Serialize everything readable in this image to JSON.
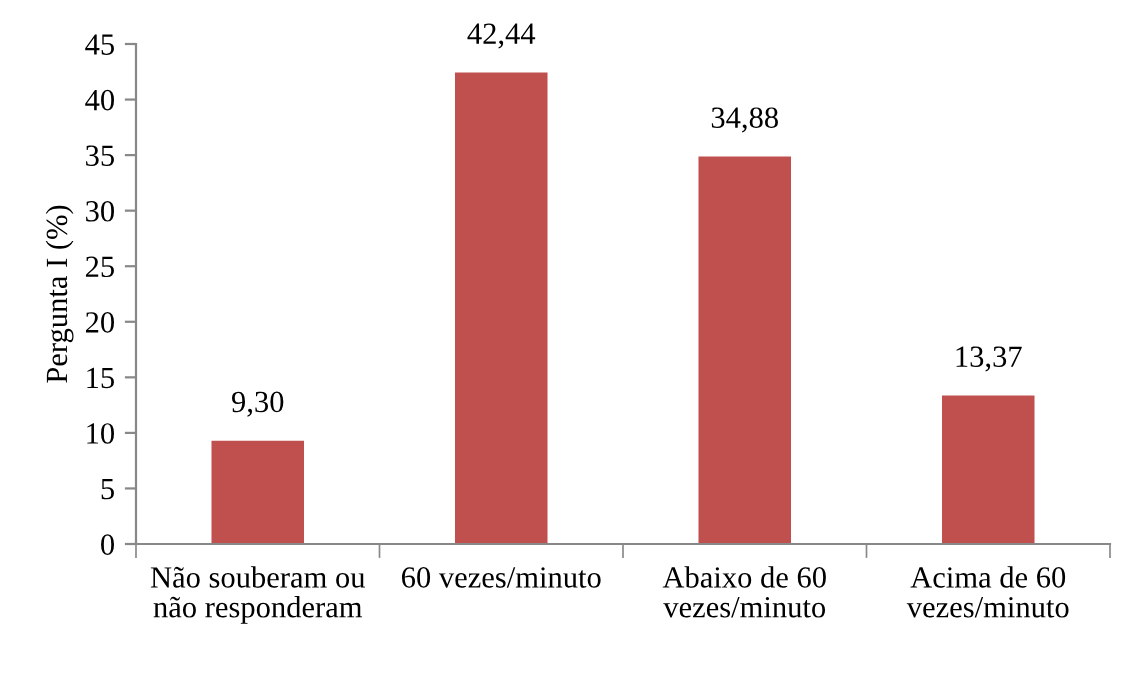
{
  "chart_data": {
    "type": "bar",
    "ylabel": "Pergunta I (%)",
    "categories": [
      "Não souberam ou\nnão responderam",
      "60 vezes/minuto",
      "Abaixo de 60\nvezes/minuto",
      "Acima de 60\nvezes/minuto"
    ],
    "values": [
      9.3,
      42.44,
      34.88,
      13.37
    ],
    "value_labels": [
      "9,30",
      "42,44",
      "34,88",
      "13,37"
    ],
    "color": "#c0504d",
    "ylim": [
      0,
      45
    ],
    "yticks": [
      0,
      5,
      10,
      15,
      20,
      25,
      30,
      35,
      40,
      45
    ],
    "grid": false,
    "legend": false
  }
}
